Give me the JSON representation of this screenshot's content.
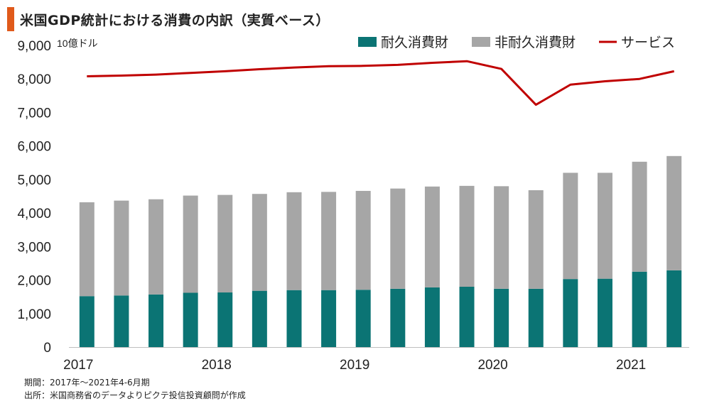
{
  "title": "米国GDP統計における消費の内訳（実質ベース）",
  "notes": {
    "period": "期間：2017年～2021年4-6月期",
    "source": "出所：米国商務省のデータよりピクテ投信投資顧問が作成"
  },
  "colors": {
    "durable": "#0b7474",
    "nondurable": "#a6a6a6",
    "services": "#c00000",
    "accent": "#e05a1b"
  },
  "chart_data": {
    "type": "bar",
    "stacked": true,
    "unit_label": "10億ドル",
    "ylim": [
      0,
      9000
    ],
    "yticks": [
      0,
      1000,
      2000,
      3000,
      4000,
      5000,
      6000,
      7000,
      8000,
      9000
    ],
    "ytick_labels": [
      "0",
      "1,000",
      "2,000",
      "3,000",
      "4,000",
      "5,000",
      "6,000",
      "7,000",
      "8,000",
      "9,000"
    ],
    "categories": [
      "2017Q1",
      "2017Q2",
      "2017Q3",
      "2017Q4",
      "2018Q1",
      "2018Q2",
      "2018Q3",
      "2018Q4",
      "2019Q1",
      "2019Q2",
      "2019Q3",
      "2019Q4",
      "2020Q1",
      "2020Q2",
      "2020Q3",
      "2020Q4",
      "2021Q1",
      "2021Q2"
    ],
    "xtick_labels": [
      {
        "label": "2017",
        "index": 0
      },
      {
        "label": "2018",
        "index": 4
      },
      {
        "label": "2019",
        "index": 8
      },
      {
        "label": "2020",
        "index": 12
      },
      {
        "label": "2021",
        "index": 16
      }
    ],
    "legend_position": "top-right",
    "grid": false,
    "series": [
      {
        "name": "耐久消費財",
        "type": "bar",
        "values": [
          1520,
          1540,
          1570,
          1620,
          1630,
          1680,
          1700,
          1700,
          1710,
          1740,
          1780,
          1800,
          1740,
          1740,
          2030,
          2040,
          2250,
          2290
        ]
      },
      {
        "name": "非耐久消費財",
        "type": "bar",
        "values": [
          2800,
          2830,
          2840,
          2900,
          2910,
          2890,
          2920,
          2930,
          2950,
          2990,
          3010,
          3010,
          3060,
          2940,
          3170,
          3160,
          3280,
          3410
        ]
      },
      {
        "name": "サービス",
        "type": "line",
        "values": [
          8080,
          8100,
          8130,
          8180,
          8230,
          8290,
          8340,
          8380,
          8390,
          8420,
          8480,
          8530,
          8300,
          7230,
          7830,
          7930,
          8000,
          8230
        ]
      }
    ]
  }
}
